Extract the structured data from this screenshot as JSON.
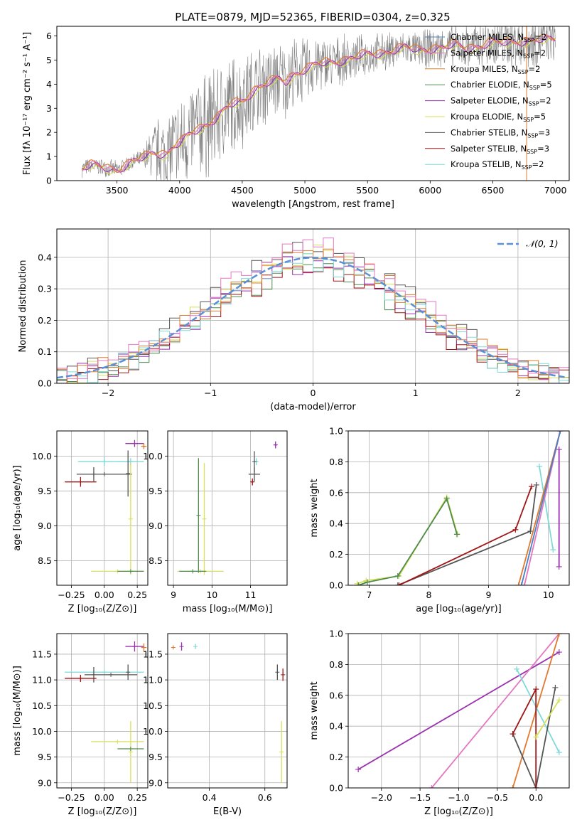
{
  "figure": {
    "title": "PLATE=0879, MJD=52365, FIBERID=0304, z=0.325"
  },
  "colors": {
    "Chabrier MILES": "#4a7fc1",
    "Salpeter MILES": "#e377c2",
    "Kroupa MILES": "#d4862a",
    "Chabrier ELODIE": "#4f8a4f",
    "Salpeter ELODIE": "#9b30b0",
    "Kroupa ELODIE": "#d6e05a",
    "Chabrier STELIB": "#555555",
    "Salpeter STELIB": "#a01515",
    "Kroupa STELIB": "#7fd9d9",
    "data_spectrum": "#808080",
    "model_orange": "#e07a30",
    "normal_curve": "#5b8fd6"
  },
  "chart_data": [
    {
      "id": "spectrum",
      "type": "line",
      "title": "PLATE=0879, MJD=52365, FIBERID=0304, z=0.325",
      "xlabel": "wavelength [Angstrom, rest frame]",
      "ylabel": "Flux [fλ 10⁻¹⁷ erg cm⁻² s⁻¹ A⁻¹]",
      "xlim": [
        3020,
        7110
      ],
      "ylim": [
        0,
        6.4
      ],
      "xticks": [
        3500,
        4000,
        4500,
        5000,
        5500,
        6000,
        6500,
        7000
      ],
      "yticks": [
        0,
        1,
        2,
        3,
        4,
        5,
        6
      ],
      "grid": false,
      "legend_position": "top-right",
      "legend": [
        "Chabrier MILES, N_SSP=2",
        "Salpeter MILES, N_SSP=2",
        "Kroupa MILES, N_SSP=2",
        "Chabrier ELODIE, N_SSP=5",
        "Salpeter ELODIE, N_SSP=2",
        "Kroupa ELODIE, N_SSP=5",
        "Chabrier STELIB, N_SSP=3",
        "Salpeter STELIB, N_SSP=3",
        "Kroupa STELIB, N_SSP=2"
      ],
      "legend_series": [
        "Chabrier MILES",
        "Salpeter MILES",
        "Kroupa MILES",
        "Chabrier ELODIE",
        "Salpeter ELODIE",
        "Kroupa ELODIE",
        "Chabrier STELIB",
        "Salpeter STELIB",
        "Kroupa STELIB"
      ],
      "model_continuum": {
        "x": [
          3220,
          3300,
          3400,
          3500,
          3600,
          3700,
          3800,
          3900,
          3950,
          4000,
          4100,
          4200,
          4300,
          4400,
          4500,
          4600,
          4700,
          4800,
          4850,
          4900,
          5000,
          5100,
          5200,
          5300,
          5400,
          5500,
          5600,
          5700,
          5800,
          5900,
          6000,
          6100,
          6200,
          6300,
          6400,
          6500,
          6600,
          6700,
          6800,
          6900,
          7000
        ],
        "y": [
          0.5,
          0.6,
          0.55,
          0.45,
          0.7,
          0.9,
          1.2,
          1.1,
          1.4,
          1.5,
          2.0,
          2.3,
          2.6,
          3.1,
          3.3,
          3.8,
          4.0,
          4.2,
          4.1,
          4.4,
          4.6,
          4.8,
          4.9,
          5.0,
          5.1,
          5.2,
          5.3,
          5.4,
          5.5,
          5.4,
          5.5,
          5.5,
          5.6,
          5.5,
          5.6,
          5.7,
          5.7,
          5.8,
          5.8,
          5.8,
          5.9
        ]
      },
      "data_noise_envelope": {
        "x": [
          3700,
          3800,
          3900,
          4000,
          4200,
          4400,
          4600,
          4800,
          5000,
          5200,
          5400,
          5600,
          5800,
          6000,
          6200,
          6400,
          6600,
          6800,
          7000
        ],
        "amplitude": [
          0.4,
          1.5,
          2.0,
          2.2,
          2.5,
          2.4,
          2.0,
          1.8,
          1.5,
          1.2,
          1.0,
          0.9,
          0.8,
          0.9,
          1.0,
          1.1,
          1.2,
          1.3,
          1.0
        ]
      }
    },
    {
      "id": "residuals",
      "type": "step",
      "xlabel": "(data-model)/error",
      "ylabel": "Normed distribution",
      "xlim": [
        -2.5,
        2.5
      ],
      "ylim": [
        0,
        0.49
      ],
      "xticks": [
        -2,
        -1,
        0,
        1,
        2
      ],
      "yticks": [
        0.0,
        0.1,
        0.2,
        0.3,
        0.4
      ],
      "grid": true,
      "legend_position": "top-right",
      "legend": [
        "𝒩(0, 1)"
      ],
      "bin_width": 0.1
    },
    {
      "id": "age_vs_Z",
      "type": "errorbar",
      "xlabel": "Z [log₁₀(Z/Z⊙)]",
      "ylabel": "age  [log₁₀(age/yr)]",
      "xlim": [
        -0.36,
        0.33
      ],
      "ylim": [
        8.15,
        10.36
      ],
      "xticks": [
        -0.25,
        0.0,
        0.25
      ],
      "xticklabels": [
        "−0.25",
        "0.00",
        "0.25"
      ],
      "yticks": [
        8.5,
        9.0,
        9.5,
        10.0
      ],
      "grid": true,
      "points": [
        {
          "series": "Salpeter ELODIE",
          "x": 0.23,
          "y": 10.18,
          "xerr": 0.07,
          "yerr": 0.05
        },
        {
          "series": "Kroupa MILES",
          "x": 0.3,
          "y": 10.14,
          "xerr": 0.02,
          "yerr": 0.04
        },
        {
          "series": "Kroupa STELIB",
          "x": 0.0,
          "y": 9.92,
          "xerr": 0.2,
          "yerr": 0.06
        },
        {
          "series": "Kroupa STELIB",
          "x": 0.2,
          "y": 9.92,
          "xerr": 0.1,
          "yerr": 0.05
        },
        {
          "series": "Chabrier STELIB",
          "x": 0.18,
          "y": 9.75,
          "xerr": 0.0,
          "yerr": 0.33
        },
        {
          "series": "Chabrier STELIB",
          "x": -0.08,
          "y": 9.74,
          "xerr": 0.0,
          "yerr": 0.1
        },
        {
          "series": "Chabrier STELIB",
          "x": 0.0,
          "y": 9.74,
          "xerr": 0.21,
          "yerr": 0.0
        },
        {
          "series": "Salpeter STELIB",
          "x": -0.18,
          "y": 9.63,
          "xerr": 0.12,
          "yerr": 0.07
        },
        {
          "series": "Kroupa ELODIE",
          "x": 0.2,
          "y": 9.1,
          "xerr": 0.0,
          "yerr": 0.8
        },
        {
          "series": "Kroupa ELODIE",
          "x": 0.1,
          "y": 8.35,
          "xerr": 0.2,
          "yerr": 0.0
        },
        {
          "series": "Chabrier ELODIE",
          "x": 0.2,
          "y": 8.35,
          "xerr": 0.1,
          "yerr": 0.0
        }
      ]
    },
    {
      "id": "age_vs_mass",
      "type": "errorbar",
      "xlabel": "mass [log₁₀(M/M⊙)]",
      "ylabel": "",
      "xlim": [
        8.85,
        11.95
      ],
      "ylim": [
        8.15,
        10.36
      ],
      "xticks": [
        9,
        10,
        11
      ],
      "yticks": [
        8.5,
        9.0,
        9.5,
        10.0
      ],
      "grid": true,
      "points": [
        {
          "series": "Salpeter ELODIE",
          "x": 11.65,
          "y": 10.16,
          "xerr": 0.05,
          "yerr": 0.05
        },
        {
          "series": "Kroupa STELIB",
          "x": 11.15,
          "y": 9.92,
          "xerr": 0.05,
          "yerr": 0.05
        },
        {
          "series": "Chabrier STELIB",
          "x": 11.1,
          "y": 9.92,
          "xerr": 0.0,
          "yerr": 0.15
        },
        {
          "series": "Chabrier STELIB",
          "x": 11.1,
          "y": 9.74,
          "xerr": 0.15,
          "yerr": 0.1
        },
        {
          "series": "Salpeter STELIB",
          "x": 11.05,
          "y": 9.63,
          "xerr": 0.05,
          "yerr": 0.05
        },
        {
          "series": "Chabrier ELODIE",
          "x": 9.65,
          "y": 9.15,
          "xerr": 0.0,
          "yerr": 0.82
        },
        {
          "series": "Kroupa ELODIE",
          "x": 9.8,
          "y": 9.1,
          "xerr": 0.0,
          "yerr": 0.8
        },
        {
          "series": "Kroupa ELODIE",
          "x": 9.7,
          "y": 8.35,
          "xerr": 0.6,
          "yerr": 0.0
        },
        {
          "series": "Chabrier ELODIE",
          "x": 9.5,
          "y": 8.35,
          "xerr": 0.35,
          "yerr": 0.0
        }
      ]
    },
    {
      "id": "weight_vs_age",
      "type": "line",
      "xlabel": "age  [log₁₀(age/yr)]",
      "ylabel": "mass weight",
      "xlim": [
        6.65,
        10.35
      ],
      "ylim": [
        0,
        1.0
      ],
      "xticks": [
        7,
        8,
        9,
        10
      ],
      "yticks": [
        0.0,
        0.2,
        0.4,
        0.6,
        0.8,
        1.0
      ],
      "grid": true,
      "series": [
        {
          "series": "Kroupa ELODIE",
          "x": [
            6.8,
            6.95,
            7.5,
            8.3,
            8.48
          ],
          "y": [
            0.01,
            0.03,
            0.06,
            0.57,
            0.33
          ]
        },
        {
          "series": "Chabrier ELODIE",
          "x": [
            6.82,
            6.97,
            7.48,
            8.3,
            8.47
          ],
          "y": [
            0.0,
            0.02,
            0.06,
            0.56,
            0.33
          ]
        },
        {
          "series": "Chabrier STELIB",
          "x": [
            7.48,
            9.7,
            9.8
          ],
          "y": [
            0.0,
            0.35,
            0.65
          ]
        },
        {
          "series": "Salpeter STELIB",
          "x": [
            7.5,
            9.45,
            9.72
          ],
          "y": [
            0.0,
            0.36,
            0.64
          ]
        },
        {
          "series": "Kroupa STELIB",
          "x": [
            9.85,
            10.08
          ],
          "y": [
            0.77,
            0.23
          ]
        },
        {
          "series": "Salpeter ELODIE",
          "x": [
            10.18,
            10.18
          ],
          "y": [
            0.12,
            0.88
          ]
        },
        {
          "series": "Kroupa MILES",
          "x": [
            9.5,
            10.2
          ],
          "y": [
            0.0,
            1.0
          ]
        },
        {
          "series": "Salpeter MILES",
          "x": [
            9.6,
            10.2
          ],
          "y": [
            0.0,
            1.0
          ]
        },
        {
          "series": "Chabrier MILES",
          "x": [
            9.55,
            10.2
          ],
          "y": [
            0.0,
            1.0
          ]
        }
      ]
    },
    {
      "id": "mass_vs_Z",
      "type": "errorbar",
      "xlabel": "Z [log₁₀(Z/Z⊙)]",
      "ylabel": "mass [log₁₀(M/M⊙)]",
      "xlim": [
        -0.36,
        0.33
      ],
      "ylim": [
        8.9,
        11.9
      ],
      "xticks": [
        -0.25,
        0.0,
        0.25
      ],
      "xticklabels": [
        "−0.25",
        "0.00",
        "0.25"
      ],
      "yticks": [
        9.0,
        9.5,
        10.0,
        10.5,
        11.0,
        11.5
      ],
      "grid": true,
      "points": [
        {
          "series": "Salpeter ELODIE",
          "x": 0.23,
          "y": 11.65,
          "xerr": 0.07,
          "yerr": 0.1
        },
        {
          "series": "Kroupa MILES",
          "x": 0.3,
          "y": 11.63,
          "xerr": 0.02,
          "yerr": 0.08
        },
        {
          "series": "Kroupa STELIB",
          "x": 0.0,
          "y": 11.15,
          "xerr": 0.3,
          "yerr": 0.0
        },
        {
          "series": "Chabrier STELIB",
          "x": 0.18,
          "y": 11.15,
          "xerr": 0.0,
          "yerr": 0.15
        },
        {
          "series": "Chabrier STELIB",
          "x": 0.05,
          "y": 11.1,
          "xerr": 0.2,
          "yerr": 0.0
        },
        {
          "series": "Chabrier STELIB",
          "x": -0.08,
          "y": 11.1,
          "xerr": 0.0,
          "yerr": 0.15
        },
        {
          "series": "Salpeter STELIB",
          "x": -0.18,
          "y": 11.03,
          "xerr": 0.12,
          "yerr": 0.07
        },
        {
          "series": "Kroupa ELODIE",
          "x": 0.2,
          "y": 9.6,
          "xerr": 0.0,
          "yerr": 0.6
        },
        {
          "series": "Kroupa ELODIE",
          "x": 0.1,
          "y": 9.8,
          "xerr": 0.2,
          "yerr": 0.0
        },
        {
          "series": "Chabrier ELODIE",
          "x": 0.2,
          "y": 9.66,
          "xerr": 0.1,
          "yerr": 0.0
        }
      ]
    },
    {
      "id": "mass_vs_ebv",
      "type": "errorbar",
      "xlabel": "E(B-V)",
      "ylabel": "",
      "xlim": [
        0.25,
        0.68
      ],
      "ylim": [
        8.9,
        11.9
      ],
      "xticks": [
        0.4,
        0.6
      ],
      "yticks": [
        9.0,
        9.5,
        10.0,
        10.5,
        11.0,
        11.5
      ],
      "grid": true,
      "points": [
        {
          "series": "Kroupa MILES",
          "x": 0.27,
          "y": 11.63,
          "xerr": 0.0,
          "yerr": 0.02
        },
        {
          "series": "Salpeter ELODIE",
          "x": 0.3,
          "y": 11.65,
          "xerr": 0.0,
          "yerr": 0.08
        },
        {
          "series": "Kroupa STELIB",
          "x": 0.35,
          "y": 11.65,
          "xerr": 0.0,
          "yerr": 0.05
        },
        {
          "series": "Chabrier STELIB",
          "x": 0.645,
          "y": 11.15,
          "xerr": 0.0,
          "yerr": 0.15
        },
        {
          "series": "Salpeter STELIB",
          "x": 0.665,
          "y": 11.1,
          "xerr": 0.0,
          "yerr": 0.12
        },
        {
          "series": "Kroupa ELODIE",
          "x": 0.66,
          "y": 9.6,
          "xerr": 0.0,
          "yerr": 0.6
        }
      ]
    },
    {
      "id": "weight_vs_Z",
      "type": "line",
      "xlabel": "Z [log₁₀(Z/Z⊙)]",
      "ylabel": "mass weight",
      "xlim": [
        -2.43,
        0.43
      ],
      "ylim": [
        0,
        1.0
      ],
      "xticks": [
        -2.0,
        -1.5,
        -1.0,
        -0.5,
        0.0
      ],
      "xticklabels": [
        "−2.0",
        "−1.5",
        "−1.0",
        "−0.5",
        "0.0"
      ],
      "yticks": [
        0.0,
        0.2,
        0.4,
        0.6,
        0.8,
        1.0
      ],
      "grid": true,
      "series": [
        {
          "series": "Salpeter ELODIE",
          "x": [
            -2.3,
            0.3
          ],
          "y": [
            0.12,
            0.88
          ]
        },
        {
          "series": "Salpeter MILES",
          "x": [
            -1.35,
            0.3
          ],
          "y": [
            0.0,
            1.0
          ]
        },
        {
          "series": "Kroupa MILES",
          "x": [
            -0.3,
            0.3
          ],
          "y": [
            0.0,
            1.0
          ]
        },
        {
          "series": "Kroupa STELIB",
          "x": [
            -0.25,
            0.3
          ],
          "y": [
            0.77,
            0.23
          ]
        },
        {
          "series": "Chabrier STELIB",
          "x": [
            -0.3,
            0.0,
            0.25
          ],
          "y": [
            0.35,
            0.0,
            0.65
          ]
        },
        {
          "series": "Salpeter STELIB",
          "x": [
            -0.3,
            0.0,
            0.0
          ],
          "y": [
            0.35,
            0.64,
            0.0
          ]
        },
        {
          "series": "Kroupa ELODIE",
          "x": [
            0.0,
            0.3
          ],
          "y": [
            0.33,
            0.57
          ]
        }
      ]
    }
  ]
}
